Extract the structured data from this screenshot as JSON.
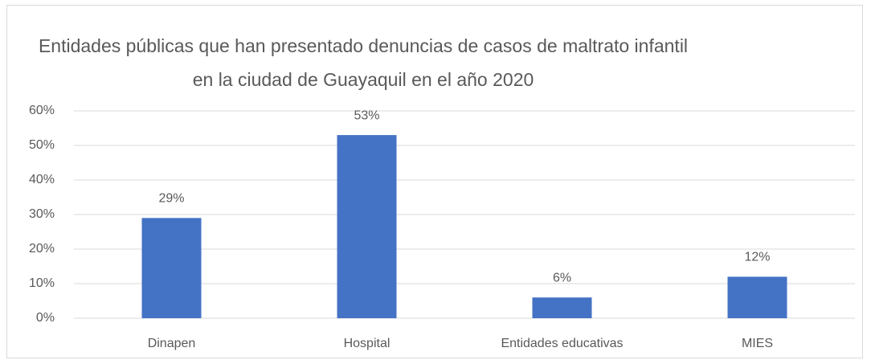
{
  "chart_data": {
    "type": "bar",
    "title": "Entidades públicas que han presentado denuncias de casos de maltrato infantil en la ciudad de Guayaquil en el año 2020",
    "categories": [
      "Dinapen",
      "Hospital",
      "Entidades educativas",
      "MIES"
    ],
    "values": [
      29,
      53,
      6,
      12
    ],
    "value_labels": [
      "29%",
      "53%",
      "6%",
      "12%"
    ],
    "color": "#4472c4",
    "ylim": [
      0,
      60
    ],
    "yticks": [
      {
        "value": 0,
        "label": "0%"
      },
      {
        "value": 10,
        "label": "10%"
      },
      {
        "value": 20,
        "label": "20%"
      },
      {
        "value": 30,
        "label": "30%"
      },
      {
        "value": 40,
        "label": "40%"
      },
      {
        "value": 50,
        "label": "50%"
      },
      {
        "value": 60,
        "label": "60%"
      }
    ],
    "grid": true
  }
}
